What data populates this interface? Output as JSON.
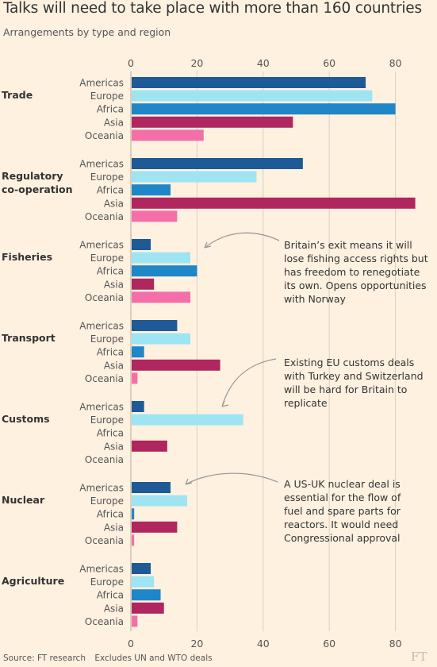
{
  "title": "Talks will need to take place with more than 160 countries",
  "subtitle": "Arrangements by type and region",
  "source": "Source: FT research",
  "note": "Excludes UN and WTO deals",
  "logo": "FT",
  "colors": {
    "background": "#fff1e0",
    "Americas": "#1e5a96",
    "Europe": "#9fe4f2",
    "Africa": "#1f86c8",
    "Asia": "#b0265e",
    "Oceania": "#f46fa8",
    "grid": "#dccfc0",
    "annotation_arrow": "#9a9a9a"
  },
  "chart_data": {
    "type": "bar",
    "orientation": "horizontal",
    "title": "Talks will need to take place with more than 160 countries",
    "subtitle": "Arrangements by type and region",
    "xlim": [
      0,
      88
    ],
    "ticks": [
      0,
      20,
      40,
      60,
      80
    ],
    "grid": true,
    "series_names": [
      "Americas",
      "Europe",
      "Africa",
      "Asia",
      "Oceania"
    ],
    "groups": [
      {
        "label": [
          "Trade"
        ],
        "values": [
          71,
          73,
          80,
          49,
          22
        ]
      },
      {
        "label": [
          "Regulatory",
          "co-operation"
        ],
        "values": [
          52,
          38,
          12,
          86,
          14
        ]
      },
      {
        "label": [
          "Fisheries"
        ],
        "values": [
          6,
          18,
          20,
          7,
          18
        ]
      },
      {
        "label": [
          "Transport"
        ],
        "values": [
          14,
          18,
          4,
          27,
          2
        ]
      },
      {
        "label": [
          "Customs"
        ],
        "values": [
          4,
          34,
          0,
          11,
          0
        ]
      },
      {
        "label": [
          "Nuclear"
        ],
        "values": [
          12,
          17,
          1,
          14,
          1
        ]
      },
      {
        "label": [
          "Agriculture"
        ],
        "values": [
          6,
          7,
          9,
          10,
          2
        ]
      }
    ],
    "annotations": [
      {
        "group": 2,
        "lines": [
          "Britain’s exit means it will",
          "lose fishing access rights but",
          "has freedom to renegotiate",
          "its own. Opens opportunities",
          "with Norway"
        ]
      },
      {
        "group": 4,
        "lines": [
          "Existing EU customs deals",
          "with Turkey and Switzerland",
          "will be hard for Britain to",
          "replicate"
        ]
      },
      {
        "group": 5,
        "lines": [
          "A US-UK nuclear deal is",
          "essential for the flow of",
          "fuel and spare parts for",
          "reactors. It would need",
          "Congressional approval"
        ]
      }
    ]
  }
}
